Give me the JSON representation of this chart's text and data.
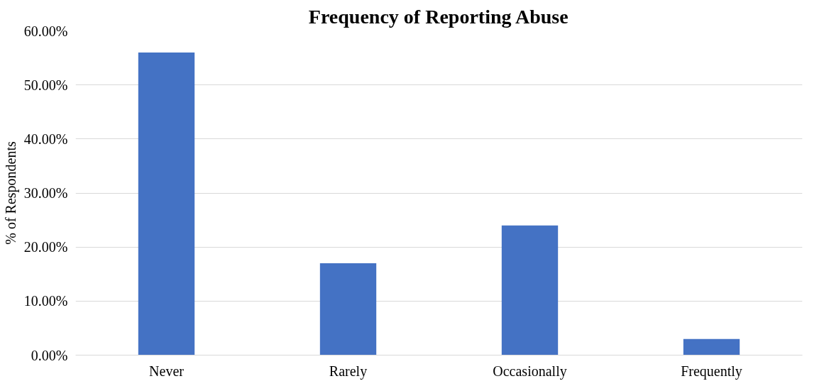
{
  "chart_data": {
    "type": "bar",
    "title": "Frequency of Reporting Abuse",
    "ylabel": "% of Respondents",
    "categories": [
      "Never",
      "Rarely",
      "Occasionally",
      "Frequently"
    ],
    "series": [
      {
        "color": "#4472c4",
        "values": [
          56,
          17,
          24,
          3
        ]
      }
    ],
    "ylim": [
      0,
      60
    ],
    "yticks": [
      {
        "value": 0,
        "label": "0.00%"
      },
      {
        "value": 10,
        "label": "10.00%"
      },
      {
        "value": 20,
        "label": "20.00%"
      },
      {
        "value": 30,
        "label": "30.00%"
      },
      {
        "value": 40,
        "label": "40.00%"
      },
      {
        "value": 50,
        "label": "50.00%"
      },
      {
        "value": 60,
        "label": "60.00%"
      }
    ],
    "grid": "y"
  }
}
